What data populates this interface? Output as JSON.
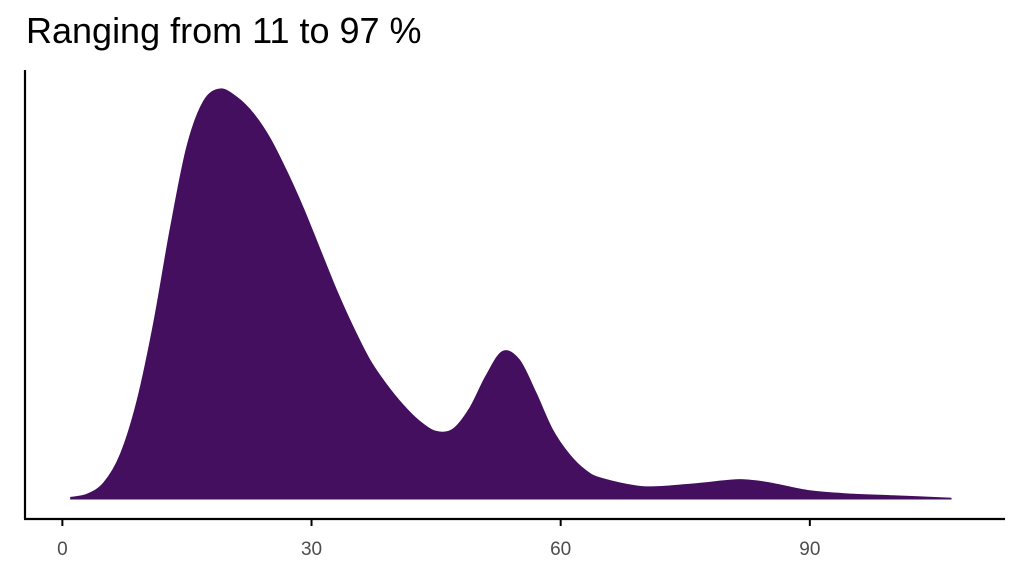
{
  "chart_data": {
    "type": "area",
    "title": "Ranging from 11 to 97 %",
    "xlabel": "",
    "ylabel": "",
    "xlim": [
      -4.5,
      113.5
    ],
    "ylim": [
      0,
      1.0
    ],
    "x_ticks": [
      0,
      30,
      60,
      90
    ],
    "y_ticks": [],
    "grid": false,
    "legend": "none",
    "fill_color": "#440f5e",
    "series": [
      {
        "x": [
          1,
          3,
          5,
          7,
          9,
          11,
          13,
          15,
          17,
          19,
          21,
          23,
          25,
          27,
          29,
          31,
          33,
          35,
          37,
          39,
          41,
          43,
          45,
          47,
          49,
          51,
          53,
          55,
          57,
          59,
          61,
          63,
          65,
          70,
          75,
          80,
          82,
          85,
          90,
          95,
          100,
          107
        ],
        "y": [
          0.004,
          0.012,
          0.04,
          0.11,
          0.24,
          0.43,
          0.66,
          0.86,
          0.97,
          1.0,
          0.98,
          0.94,
          0.88,
          0.8,
          0.71,
          0.61,
          0.51,
          0.42,
          0.34,
          0.28,
          0.23,
          0.19,
          0.165,
          0.17,
          0.22,
          0.3,
          0.36,
          0.34,
          0.26,
          0.17,
          0.11,
          0.07,
          0.05,
          0.03,
          0.035,
          0.045,
          0.047,
          0.04,
          0.02,
          0.012,
          0.008,
          0.002
        ]
      }
    ]
  }
}
